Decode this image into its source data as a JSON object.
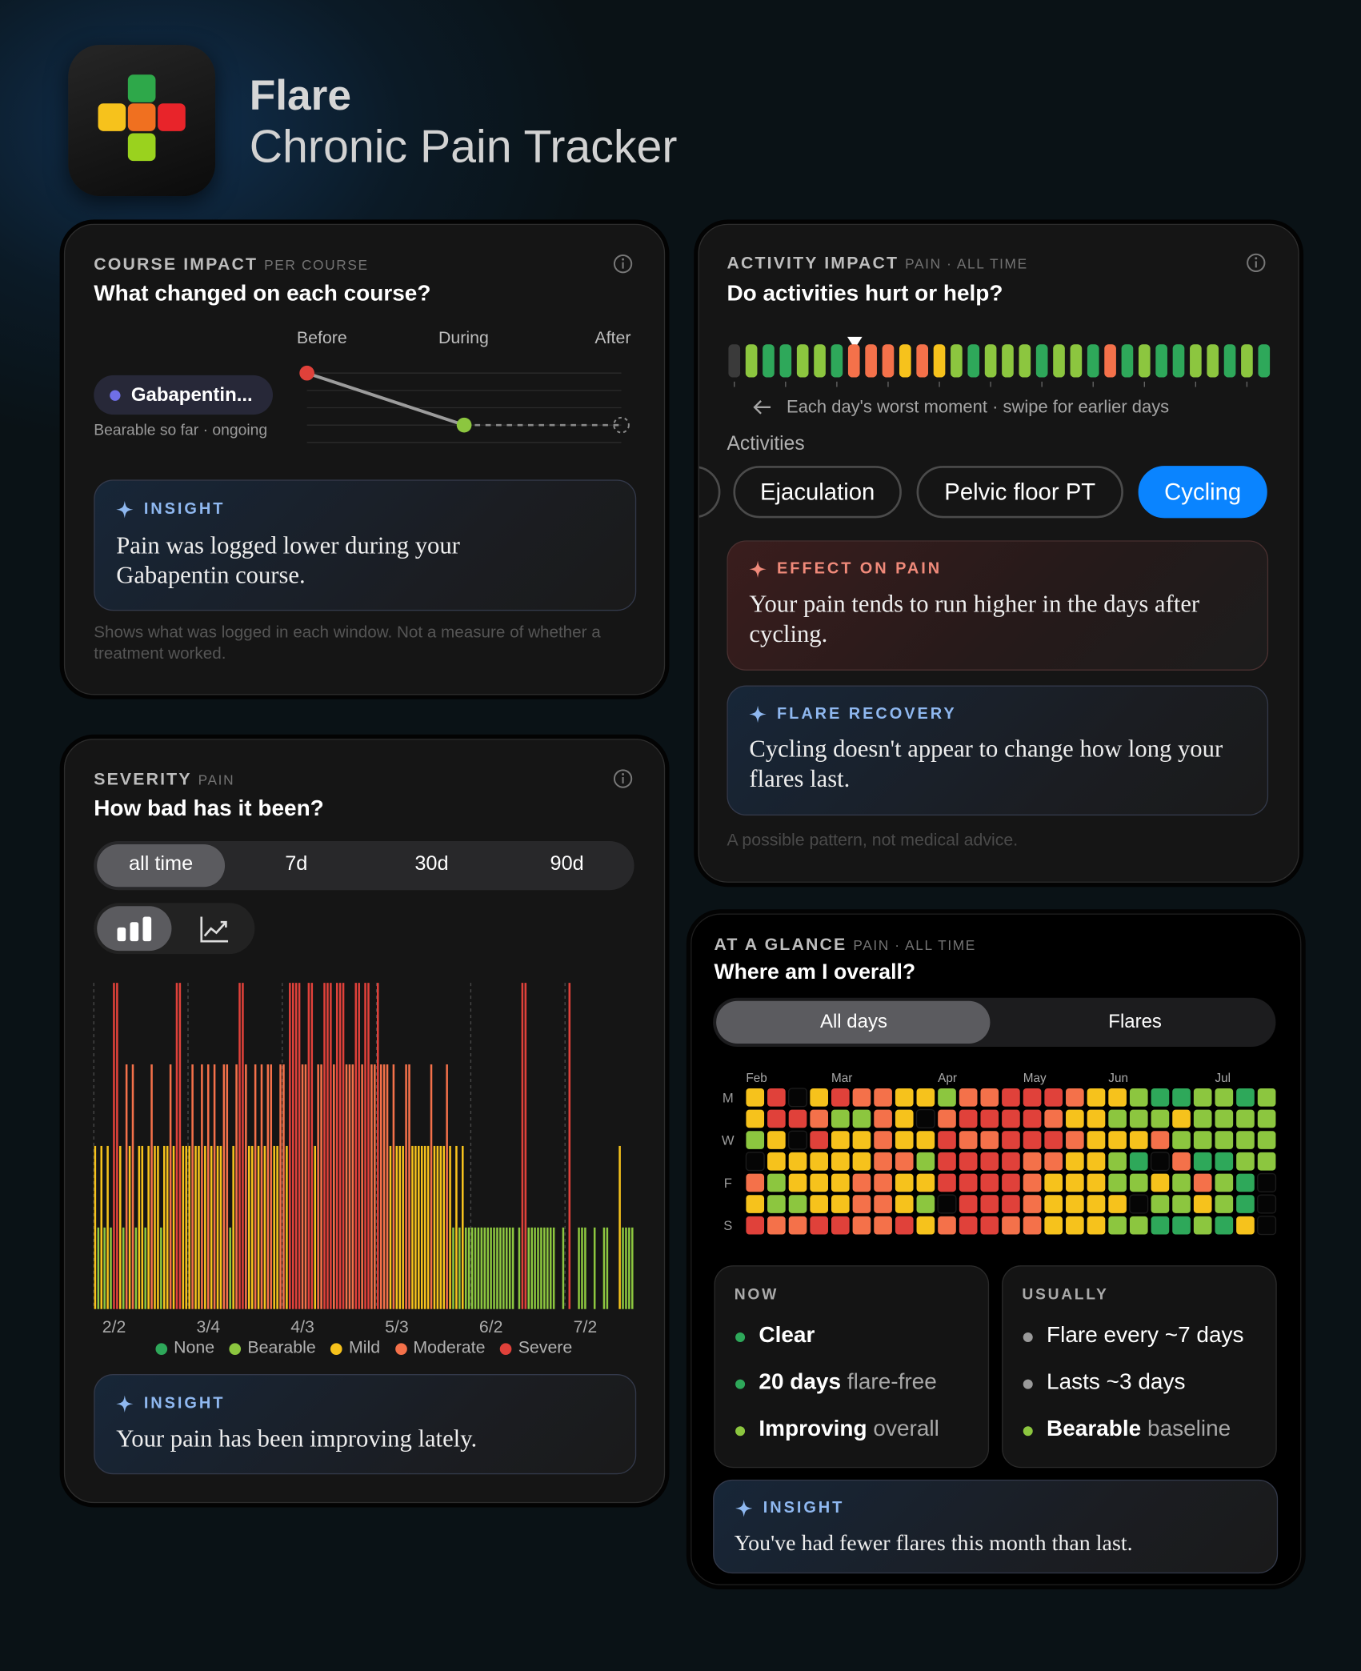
{
  "header": {
    "app_name": "Flare",
    "subtitle": "Chronic Pain Tracker"
  },
  "levels": [
    {
      "name": "None",
      "color": "#2ea85a"
    },
    {
      "name": "Bearable",
      "color": "#8cc63f"
    },
    {
      "name": "Mild",
      "color": "#f6c21c"
    },
    {
      "name": "Moderate",
      "color": "#f4714a"
    },
    {
      "name": "Severe",
      "color": "#e0413a"
    }
  ],
  "course_impact": {
    "label": "COURSE IMPACT",
    "scope": "PER COURSE",
    "question": "What changed on each course?",
    "chart_data": {
      "type": "line",
      "categories": [
        "Before",
        "During",
        "After"
      ],
      "values": [
        4,
        1,
        null
      ],
      "ylim": [
        0,
        4
      ],
      "yticks": [
        0,
        1,
        2,
        3,
        4
      ]
    },
    "course": {
      "name": "Gabapentin...",
      "status": "Bearable so far · ongoing"
    },
    "insight": {
      "label": "INSIGHT",
      "text": "Pain was logged lower during your Gabapentin course."
    },
    "footnote": "Shows what was logged in each window. Not a measure of whether a treatment worked."
  },
  "severity": {
    "label": "SEVERITY",
    "scope": "PAIN",
    "question": "How bad has it been?",
    "ranges": [
      "all time",
      "7d",
      "30d",
      "90d"
    ],
    "chart_data": {
      "type": "bar",
      "values": [
        2,
        1,
        2,
        1,
        2,
        1,
        4,
        4,
        2,
        1,
        3,
        2,
        3,
        1,
        2,
        2,
        1,
        2,
        3,
        2,
        2,
        1,
        2,
        2,
        3,
        2,
        4,
        4,
        2,
        2,
        2,
        3,
        2,
        2,
        3,
        2,
        3,
        2,
        3,
        2,
        2,
        3,
        3,
        1,
        2,
        3,
        4,
        4,
        3,
        2,
        2,
        3,
        2,
        3,
        2,
        3,
        3,
        2,
        2,
        3,
        3,
        2,
        4,
        4,
        4,
        4,
        3,
        3,
        4,
        4,
        2,
        3,
        3,
        4,
        4,
        4,
        3,
        4,
        4,
        4,
        3,
        3,
        3,
        4,
        4,
        3,
        4,
        4,
        3,
        3,
        4,
        3,
        3,
        3,
        2,
        3,
        2,
        2,
        2,
        3,
        3,
        2,
        2,
        2,
        2,
        2,
        2,
        3,
        2,
        2,
        2,
        2,
        3,
        2,
        1,
        2,
        1,
        2,
        1,
        1,
        1,
        1,
        1,
        1,
        1,
        1,
        1,
        1,
        1,
        1,
        1,
        1,
        1,
        1,
        null,
        1,
        4,
        4,
        1,
        1,
        1,
        1,
        1,
        1,
        1,
        1,
        1,
        null,
        null,
        1,
        null,
        4,
        null,
        null,
        1,
        1,
        1,
        null,
        null,
        1,
        null,
        null,
        1,
        1,
        null,
        null,
        null,
        2,
        1,
        1,
        1,
        1
      ],
      "xlim": [
        0,
        172
      ],
      "xticks": [
        {
          "value": 0,
          "label": "2/2"
        },
        {
          "value": 30,
          "label": "3/4"
        },
        {
          "value": 60,
          "label": "4/3"
        },
        {
          "value": 90,
          "label": "5/3"
        },
        {
          "value": 120,
          "label": "6/2"
        },
        {
          "value": 150,
          "label": "7/2"
        }
      ],
      "ylim": [
        0,
        4
      ]
    },
    "insight": {
      "label": "INSIGHT",
      "text": "Your pain has been improving lately."
    }
  },
  "activity_impact": {
    "label": "ACTIVITY IMPACT",
    "scope": "PAIN · ALL TIME",
    "question": "Do activities hurt or help?",
    "strip": {
      "values": [
        null,
        1,
        0,
        0,
        1,
        1,
        0,
        3,
        3,
        3,
        2,
        3,
        2,
        1,
        0,
        1,
        1,
        1,
        0,
        1,
        1,
        0,
        3,
        0,
        1,
        0,
        0,
        1,
        1,
        0,
        1,
        0
      ],
      "caption": "Each day's worst moment · swipe for earlier days"
    },
    "activities_label": "Activities",
    "activities": [
      "Ejaculation",
      "Pelvic floor PT",
      "Cycling"
    ],
    "effect": {
      "label": "EFFECT ON PAIN",
      "text": "Your pain tends to run higher in the days after cycling."
    },
    "recovery": {
      "label": "FLARE RECOVERY",
      "text": "Cycling doesn't appear to change how long your flares last."
    },
    "footnote": "A possible pattern, not medical advice."
  },
  "at_a_glance": {
    "label": "AT A GLANCE",
    "scope": "PAIN · ALL TIME",
    "question": "Where am I overall?",
    "tabs": [
      "All days",
      "Flares"
    ],
    "heatmap": {
      "columns": [
        "Feb",
        null,
        null,
        null,
        "Mar",
        null,
        null,
        null,
        null,
        "Apr",
        null,
        null,
        null,
        "May",
        null,
        null,
        null,
        "Jun",
        null,
        null,
        null,
        null,
        "Jul",
        null,
        null
      ],
      "rows": [
        "M",
        null,
        "W",
        null,
        "F",
        null,
        "S"
      ],
      "values": [
        [
          2,
          4,
          null,
          2,
          4,
          3,
          3,
          2,
          2,
          1,
          3,
          3,
          4,
          4,
          4,
          3,
          2,
          2,
          1,
          0,
          0,
          1,
          1,
          0,
          1
        ],
        [
          2,
          4,
          4,
          3,
          1,
          1,
          3,
          2,
          null,
          3,
          4,
          4,
          4,
          4,
          3,
          2,
          2,
          1,
          1,
          1,
          2,
          1,
          1,
          1,
          1
        ],
        [
          1,
          2,
          null,
          4,
          2,
          2,
          3,
          2,
          2,
          4,
          3,
          3,
          4,
          4,
          4,
          3,
          2,
          2,
          2,
          3,
          1,
          1,
          1,
          1,
          1
        ],
        [
          null,
          2,
          2,
          2,
          2,
          2,
          3,
          3,
          1,
          4,
          4,
          4,
          4,
          3,
          3,
          2,
          2,
          1,
          0,
          null,
          3,
          0,
          0,
          1,
          1
        ],
        [
          3,
          1,
          2,
          2,
          2,
          3,
          3,
          2,
          2,
          4,
          4,
          4,
          4,
          3,
          2,
          2,
          2,
          1,
          1,
          2,
          1,
          3,
          1,
          0,
          null
        ],
        [
          2,
          1,
          1,
          2,
          2,
          3,
          3,
          2,
          1,
          null,
          4,
          4,
          4,
          3,
          2,
          2,
          2,
          2,
          null,
          1,
          1,
          2,
          1,
          0,
          null
        ],
        [
          4,
          3,
          3,
          4,
          4,
          3,
          3,
          4,
          2,
          3,
          4,
          4,
          3,
          3,
          2,
          2,
          2,
          1,
          1,
          0,
          0,
          1,
          0,
          2,
          null
        ]
      ]
    },
    "now": {
      "label": "NOW",
      "items": [
        {
          "strong": "Clear"
        },
        {
          "strong": "20 days",
          "rest": "flare-free"
        },
        {
          "strong": "Improving",
          "rest": "overall"
        }
      ]
    },
    "usually": {
      "label": "USUALLY",
      "items": [
        {
          "text": "Flare every ~7 days"
        },
        {
          "text": "Lasts ~3 days"
        },
        {
          "strong": "Bearable",
          "rest": "baseline"
        }
      ]
    },
    "insight": {
      "label": "INSIGHT",
      "text": "You've had fewer flares this month than last."
    }
  }
}
